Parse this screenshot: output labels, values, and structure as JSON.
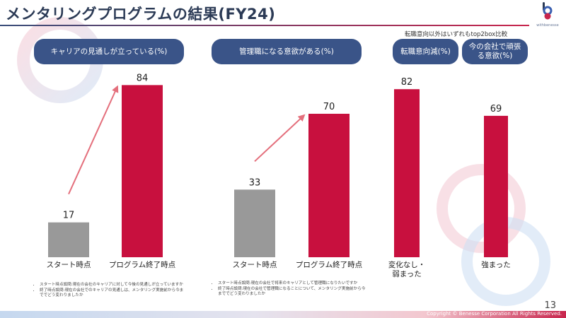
{
  "header": {
    "title": "メンタリングプログラムの結果(FY24)",
    "logo_text": "withbenesse"
  },
  "note": "転職意向以外はいずれもtop2box比較",
  "pills": {
    "career": "キャリアの見通しが立っている(%)",
    "mgmt": "管理職になる意欲がある(%)",
    "turnover": "転職意向減(%)",
    "motivation": "今の会社で頑張る意欲(%)"
  },
  "chart_data": [
    {
      "type": "bar",
      "title": "キャリアの見通しが立っている(%)",
      "categories": [
        "スタート時点",
        "プログラム終了時点"
      ],
      "values": [
        17,
        84
      ],
      "ylim": [
        0,
        100
      ],
      "colors": [
        "#999999",
        "#c8103e"
      ],
      "arrow": true
    },
    {
      "type": "bar",
      "title": "管理職になる意欲がある(%)",
      "categories": [
        "スタート時点",
        "プログラム終了時点"
      ],
      "values": [
        33,
        70
      ],
      "ylim": [
        0,
        100
      ],
      "colors": [
        "#999999",
        "#c8103e"
      ],
      "arrow": true
    },
    {
      "type": "bar",
      "title": "転職意向減(%) / 今の会社で頑張る意欲(%)",
      "categories": [
        "変化なし・弱まった",
        "強まった"
      ],
      "values": [
        82,
        69
      ],
      "ylim": [
        0,
        100
      ],
      "colors": [
        "#c8103e",
        "#c8103e"
      ],
      "arrow": false
    }
  ],
  "footnotes": {
    "career": [
      "スタート時点設問:現在の会社のキャリアに対して今後の見通しが立っていますか",
      "終了時点設問:現在の会社でのキャリアの見通しは、メンタリング実施前から今まででどう変わりましたか"
    ],
    "mgmt": [
      "スタート時点設問:現在の会社で将来のキャリアとして管理職になりたいですか",
      "終了時点設問:現在の会社で管理職になることについて、メンタリング実施前から今まででどう変わりましたか"
    ]
  },
  "footer": {
    "copyright": "Copyright © Benesse Corporation All Rights Reserved.",
    "page": "13"
  }
}
